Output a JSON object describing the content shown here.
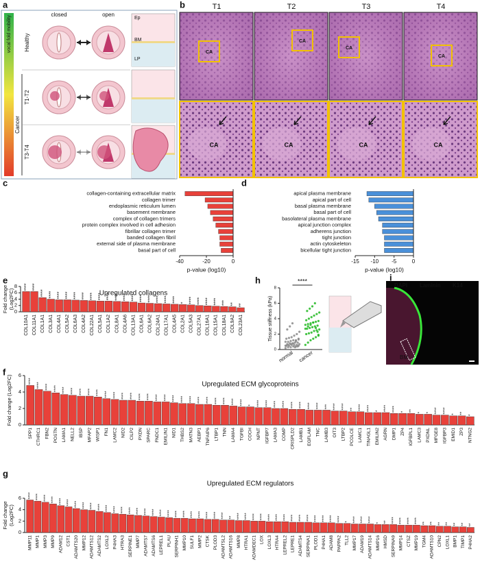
{
  "panel_a": {
    "label": "a",
    "gradient_label": "vocal fold mobility",
    "columns": [
      "closed",
      "open"
    ],
    "rows": [
      "Healthy",
      "T1-T2",
      "T3-T4"
    ],
    "group": "Cancer",
    "layers": [
      "Ep",
      "BM",
      "LP"
    ]
  },
  "panel_b": {
    "label": "b",
    "columns": [
      "T1",
      "T2",
      "T3",
      "T4"
    ],
    "region": "CA"
  },
  "panel_i": {
    "label": "i",
    "stains": [
      "DAPI",
      "Laminin",
      "K14"
    ],
    "region": "BM"
  },
  "chart_data": [
    {
      "label": "c",
      "type": "barh",
      "color": "#e8413a",
      "categories": [
        "collagen-containing extracellular matrix",
        "collagen trimer",
        "endoplasmic reticulum lumen",
        "basement membrane",
        "complex of collagen trimers",
        "protein complex involved in cell adhesion",
        "fibrillar collagen trimer",
        "banded collagen fibril",
        "external side of plasma membrane",
        "basal part of cell"
      ],
      "values": [
        -36,
        -21,
        -19,
        -17,
        -15,
        -13,
        -11,
        -10,
        -10,
        -9
      ],
      "xlabel": "p-value (log10)",
      "xlim": [
        -40,
        0
      ],
      "xticks": [
        -40,
        -20,
        0
      ]
    },
    {
      "label": "d",
      "type": "barh",
      "color": "#4a90d9",
      "categories": [
        "apical plasma membrane",
        "apical part of cell",
        "basal plasma membrane",
        "basal part of cell",
        "basolateral plasma membrane",
        "apical junction complex",
        "adherens junction",
        "tight junction",
        "actin cytoskeleton",
        "bicellular tight junction"
      ],
      "values": [
        -12,
        -11.5,
        -10,
        -9.5,
        -9,
        -8,
        -8,
        -7.5,
        -7.5,
        -7.5
      ],
      "xlabel": "p-value (log10)",
      "xlim": [
        -15,
        0
      ],
      "xticks": [
        -15,
        -10,
        -5,
        0
      ]
    },
    {
      "label": "e",
      "type": "bar",
      "color": "#e8413a",
      "title": "Upregulated collagens",
      "ylabel": [
        "Fold change",
        "(Log2FC)"
      ],
      "categories": [
        "COL10A1",
        "COL11A1",
        "COL1A1",
        "COL3A1",
        "COL4A1",
        "COL5A2",
        "COL6A3",
        "COL4A2",
        "COL22A1",
        "COL5A1",
        "COL1A2",
        "COL8A1",
        "COL4A6",
        "COL13A1",
        "COL6A1",
        "COL6A2",
        "COL24A1",
        "COL17A1",
        "COL4A5",
        "COL2A1",
        "COL5A3",
        "COL27A1",
        "COL16A1",
        "COL15A1",
        "COL18A1",
        "COL9A2",
        "COL23A1"
      ],
      "values": [
        6.4,
        6.4,
        4.5,
        4.0,
        3.8,
        3.8,
        3.7,
        3.6,
        3.5,
        3.4,
        3.4,
        3.3,
        3.2,
        3.1,
        2.8,
        2.7,
        2.6,
        2.5,
        2.4,
        2.3,
        2.2,
        2.0,
        1.9,
        1.8,
        1.7,
        1.6,
        1.3
      ],
      "stars": [
        "****",
        "****",
        "****",
        "****",
        "****",
        "****",
        "****",
        "****",
        "****",
        "****",
        "****",
        "****",
        "****",
        "****",
        "****",
        "****",
        "****",
        "****",
        "****",
        "*",
        "****",
        "****",
        "****",
        "****",
        "***",
        "**",
        "**"
      ],
      "ylim": [
        0,
        8
      ],
      "yticks": [
        0,
        2,
        4,
        6,
        8
      ]
    },
    {
      "label": "f",
      "type": "bar",
      "color": "#e8413a",
      "title": "Upregulated ECM glycoproteins",
      "ylabel": [
        "Fold change (Log2FC)"
      ],
      "categories": [
        "SPP1",
        "CTHRC1",
        "FBN2",
        "POSTN",
        "LAMA1",
        "NELL2",
        "IBSP",
        "MFAP2",
        "WISP1",
        "FN1",
        "LAMC2",
        "NID2",
        "CILP2",
        "PXDN",
        "SPARC",
        "FNDC1",
        "EMILIN1",
        "NID1",
        "THBS2",
        "MATN3",
        "AEBP1",
        "TNFAIP6",
        "LTBP1",
        "TNN",
        "LAMA4",
        "TGFBI",
        "COCH",
        "NPNT",
        "IGFBP7",
        "LAMA3",
        "COMP",
        "CRISPLD2",
        "LAMB1",
        "EGFLAM",
        "TNC",
        "LAMB3",
        "OIT3",
        "LTBP2",
        "PCOLCE",
        "LAMC1",
        "TINAGL1",
        "EMILIN2",
        "AGRN",
        "DMP1",
        "ZP4",
        "IGFBPL1",
        "LAMC3",
        "PXDNL",
        "MFGE8",
        "IGFBP3",
        "EMID1",
        "ZP3",
        "NTNG2"
      ],
      "values": [
        4.8,
        4.3,
        4.1,
        3.9,
        3.7,
        3.6,
        3.5,
        3.5,
        3.4,
        3.2,
        3.1,
        3.0,
        3.0,
        2.9,
        2.9,
        2.8,
        2.8,
        2.7,
        2.6,
        2.6,
        2.5,
        2.5,
        2.4,
        2.4,
        2.3,
        2.2,
        2.2,
        2.1,
        2.1,
        2.0,
        2.0,
        1.9,
        1.9,
        1.8,
        1.8,
        1.8,
        1.7,
        1.7,
        1.6,
        1.6,
        1.5,
        1.5,
        1.5,
        1.4,
        1.4,
        1.4,
        1.3,
        1.3,
        1.2,
        1.2,
        1.1,
        1.1,
        1.0
      ],
      "stars": [
        "****",
        "****",
        "****",
        "****",
        "****",
        "****",
        "****",
        "****",
        "****",
        "****",
        "****",
        "****",
        "****",
        "****",
        "****",
        "****",
        "****",
        "****",
        "****",
        "****",
        "****",
        "****",
        "****",
        "****",
        "****",
        "****",
        "*",
        "****",
        "****",
        "****",
        "****",
        "****",
        "****",
        "****",
        "****",
        "***",
        "****",
        "****",
        "**",
        "****",
        "****",
        "*",
        "****",
        "****",
        "*",
        "**",
        "*",
        "*",
        "****",
        "****",
        "*",
        "**",
        "*"
      ],
      "ylim": [
        0,
        6
      ],
      "yticks": [
        0,
        2,
        4,
        6
      ]
    },
    {
      "label": "g",
      "type": "bar",
      "color": "#e8413a",
      "title": "Upregulated ECM regulators",
      "ylabel": [
        "Fold change",
        "(Log2FC)"
      ],
      "categories": [
        "MMP11",
        "MMP1",
        "MMP3",
        "MMP9",
        "ADAM12",
        "CST1",
        "ADAMTS20",
        "MMP12",
        "ADAMTS12",
        "ADAMTS2",
        "LOXL2",
        "P4HA3",
        "HTRA3",
        "SERPINE1",
        "MMP7",
        "ADAMTS7",
        "ADAMTS6",
        "LEPREL1",
        "PLAU",
        "SERPINH1",
        "MMP10",
        "SULF1",
        "MMP2",
        "CTSK",
        "PLOD3",
        "ADAMTSL2",
        "ADAMTS16",
        "MMP8",
        "HTRA1",
        "ADAMDEC1",
        "LOX",
        "LOXL3",
        "HTRA4",
        "LEPREL2",
        "LEPRE1",
        "ADAMTS4",
        "SERPINA1",
        "PLOD1",
        "P4HA1",
        "ADAM8",
        "PAPPA2",
        "TLL2",
        "MMP17",
        "ADAM19",
        "ADAMTS14",
        "MMP16",
        "HMSD",
        "SERPINA9",
        "MMP14",
        "CTSZ",
        "MMP19",
        "TGM4",
        "ADAMTS10",
        "CPN2",
        "LOXL1",
        "BMP1",
        "TIMP1",
        "P4HA2"
      ],
      "values": [
        5.7,
        5.5,
        5.3,
        5.0,
        4.7,
        4.5,
        4.2,
        4.0,
        3.9,
        3.7,
        3.5,
        3.3,
        3.2,
        3.1,
        3.0,
        2.9,
        2.8,
        2.7,
        2.6,
        2.5,
        2.5,
        2.4,
        2.4,
        2.3,
        2.3,
        2.2,
        2.2,
        2.1,
        2.1,
        2.0,
        2.0,
        1.9,
        1.9,
        1.9,
        1.8,
        1.8,
        1.8,
        1.7,
        1.7,
        1.7,
        1.6,
        1.6,
        1.5,
        1.5,
        1.5,
        1.4,
        1.4,
        1.4,
        1.3,
        1.3,
        1.3,
        1.2,
        1.2,
        1.1,
        1.1,
        1.0,
        1.0,
        0.9
      ],
      "stars": [
        "****",
        "****",
        "****",
        "****",
        "****",
        "****",
        "****",
        "****",
        "****",
        "****",
        "****",
        "****",
        "****",
        "****",
        "****",
        "****",
        "****",
        "****",
        "****",
        "****",
        "****",
        "****",
        "****",
        "****",
        "****",
        "****",
        "**",
        "****",
        "****",
        "****",
        "****",
        "****",
        "****",
        "****",
        "****",
        "****",
        "****",
        "****",
        "****",
        "****",
        "****",
        "*",
        "****",
        "****",
        "****",
        "*",
        "**",
        "****",
        "****",
        "****",
        "****",
        "**",
        "**",
        "**",
        "**",
        "**",
        "**",
        "**"
      ],
      "ylim": [
        0,
        6
      ],
      "yticks": [
        0,
        2,
        4,
        6
      ]
    },
    {
      "label": "h",
      "type": "strip",
      "ylabel": "Tissue stiffness (kPa)",
      "significance": "****",
      "categories": [
        "normal",
        "cancer"
      ],
      "series": [
        {
          "name": "normal",
          "color": "#8a8a8a",
          "values": [
            0.2,
            0.3,
            0.3,
            0.4,
            0.4,
            0.5,
            0.5,
            0.5,
            0.6,
            0.6,
            0.6,
            0.7,
            0.7,
            0.8,
            0.8,
            0.9,
            0.9,
            1.0,
            1.0,
            1.1,
            1.2,
            1.2,
            1.3,
            1.4,
            1.5,
            1.6,
            1.8,
            2.0,
            2.3,
            2.6,
            3.0,
            3.4,
            0.3,
            0.4,
            0.5,
            0.6,
            0.7,
            0.8,
            1.1,
            1.4
          ]
        },
        {
          "name": "cancer",
          "color": "#22b822",
          "values": [
            0.6,
            0.9,
            1.2,
            1.4,
            1.6,
            1.8,
            2.0,
            2.1,
            2.2,
            2.4,
            2.5,
            2.6,
            2.7,
            2.8,
            2.9,
            3.0,
            3.1,
            3.2,
            3.3,
            3.4,
            3.5,
            3.6,
            3.7,
            3.8,
            4.0,
            4.2,
            4.4,
            4.6,
            4.8,
            5.0,
            5.3,
            5.6,
            6.0,
            2.3,
            2.7,
            3.0,
            3.2,
            3.5,
            2.8,
            1.9
          ]
        }
      ],
      "ylim": [
        0,
        8
      ],
      "yticks": [
        0,
        2,
        4,
        6,
        8
      ]
    }
  ]
}
